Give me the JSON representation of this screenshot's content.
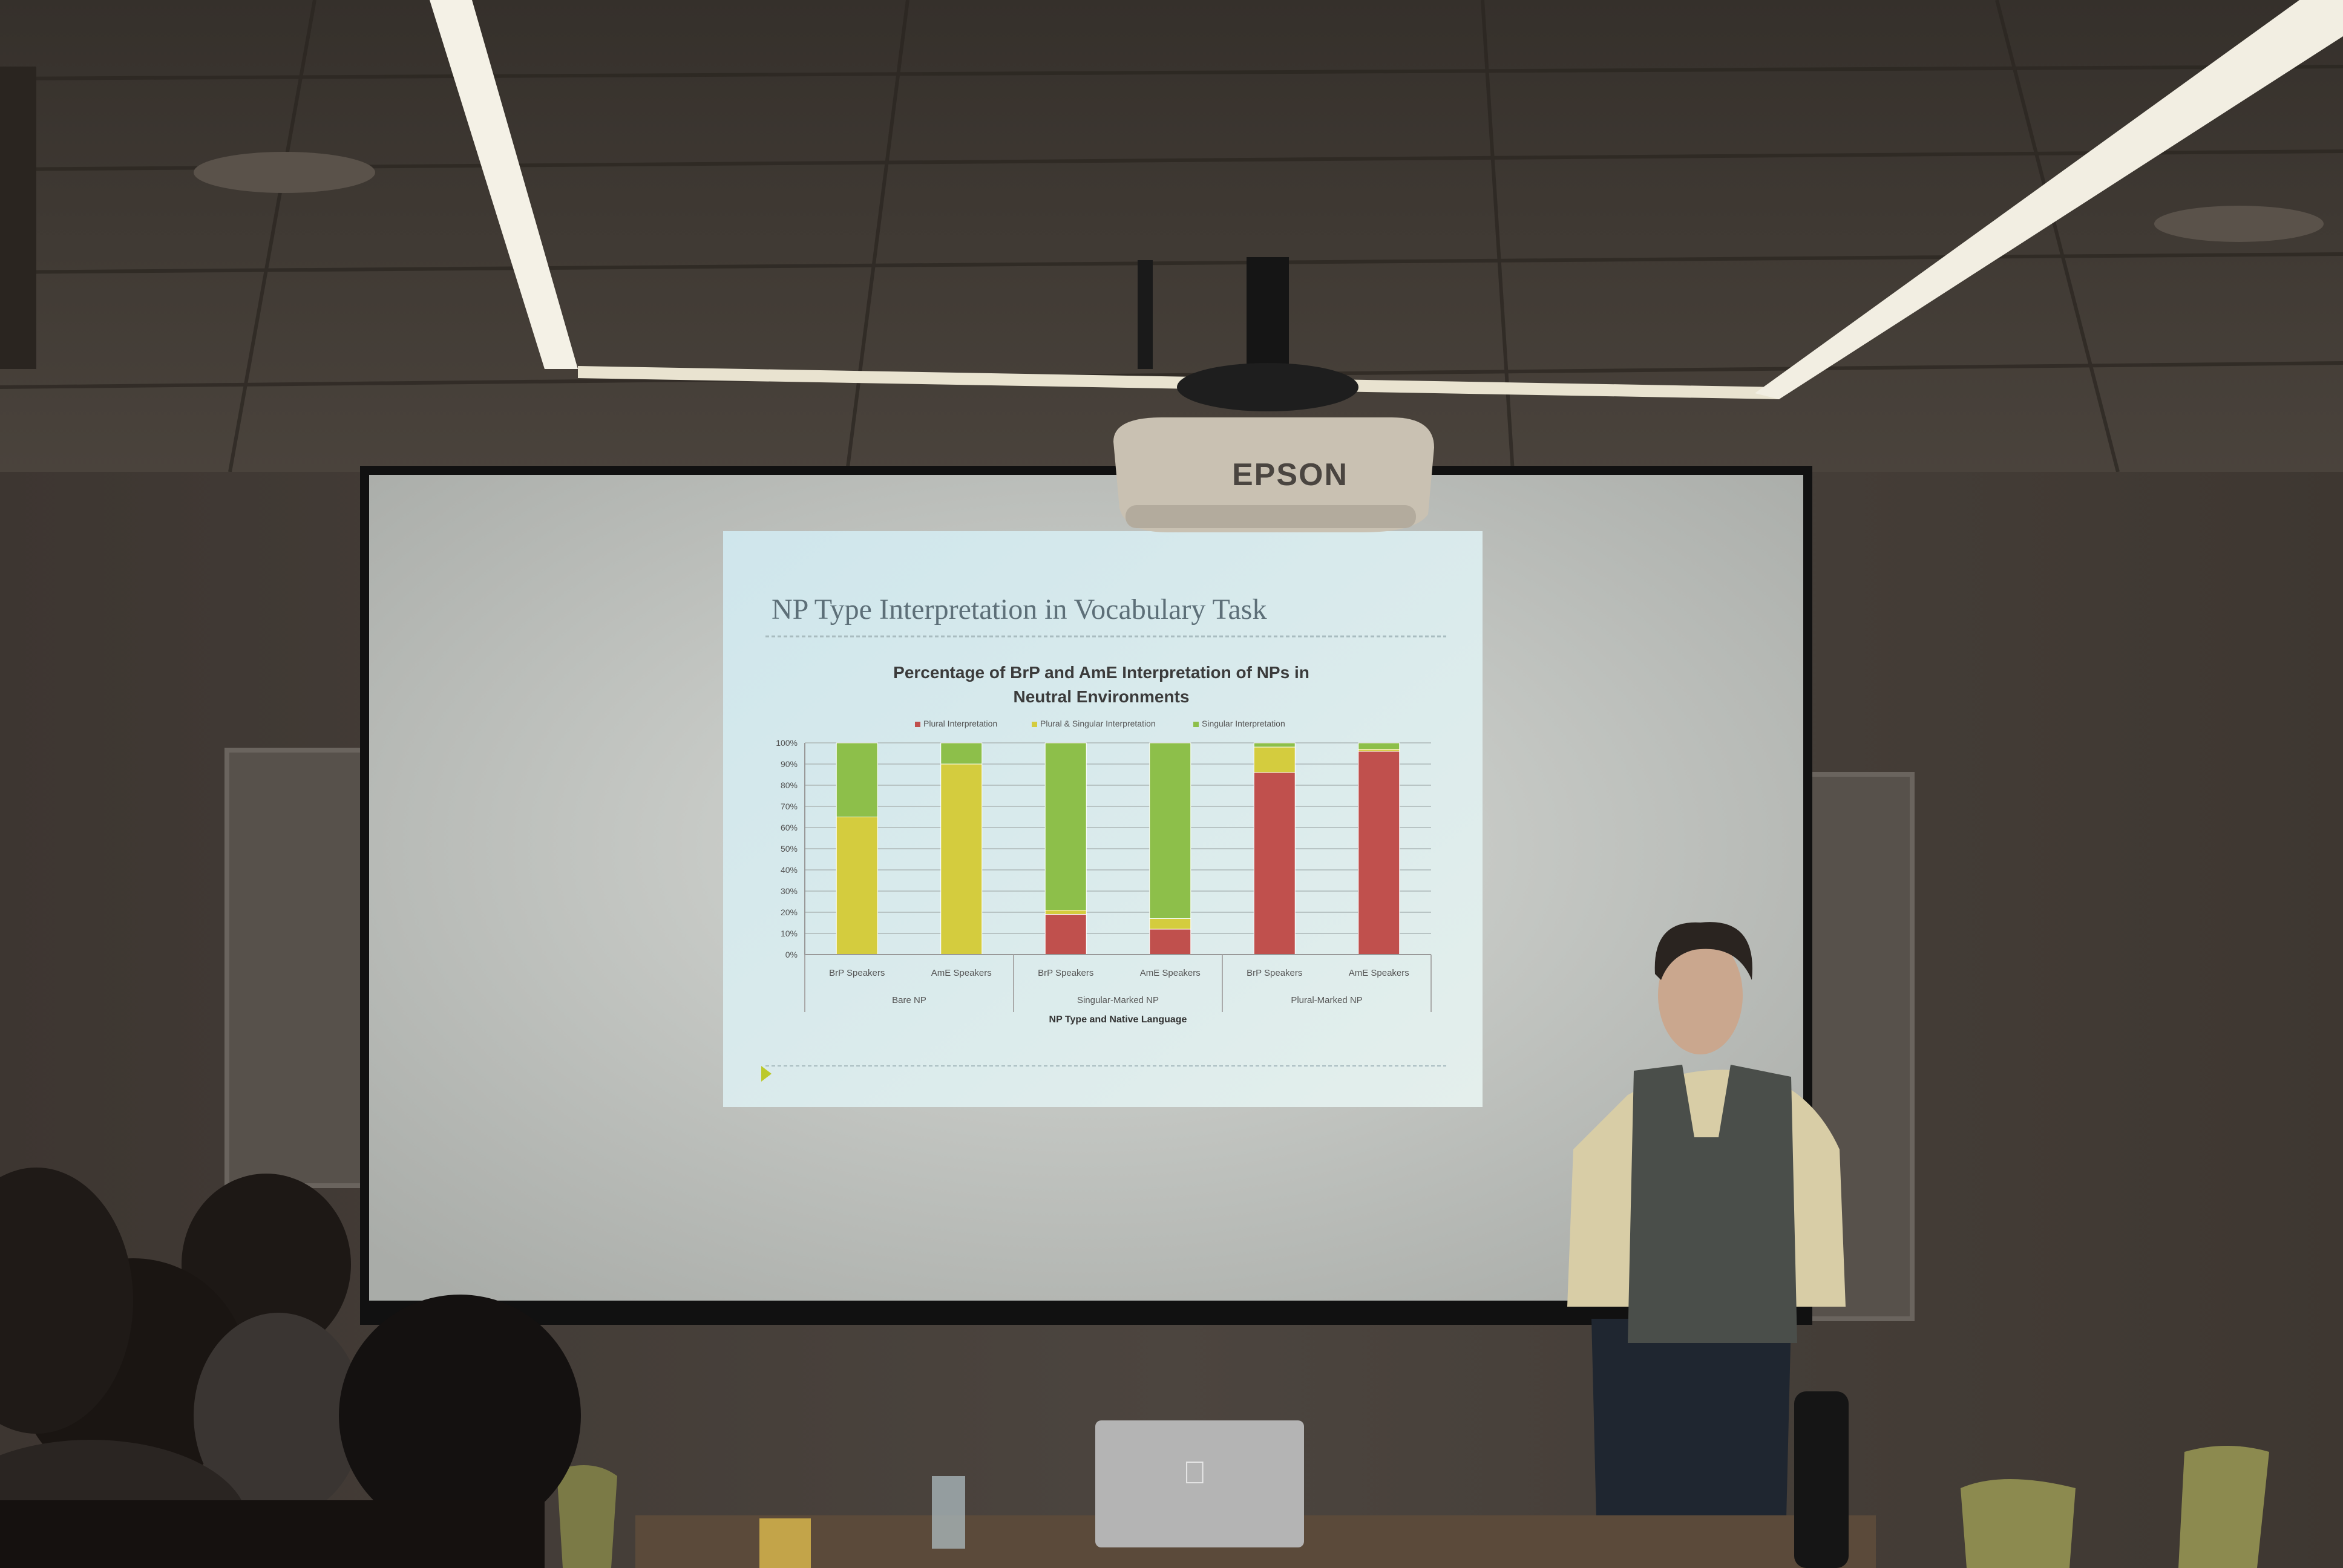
{
  "projector_brand": "EPSON",
  "slide": {
    "title": "NP Type Interpretation in Vocabulary Task"
  },
  "chart_data": {
    "type": "bar",
    "stacked": true,
    "title_lines": [
      "Percentage of BrP and AmE Interpretation of NPs in",
      "Neutral Environments"
    ],
    "legend": [
      "Plural Interpretation",
      "Plural & Singular Interpretation",
      "Singular Interpretation"
    ],
    "legend_placement": "top",
    "categories": [
      "BrP Speakers",
      "AmE Speakers",
      "BrP Speakers",
      "AmE Speakers",
      "BrP Speakers",
      "AmE Speakers"
    ],
    "groups": [
      {
        "name": "Bare NP",
        "span": [
          0,
          1
        ]
      },
      {
        "name": "Singular-Marked NP",
        "span": [
          2,
          3
        ]
      },
      {
        "name": "Plural-Marked NP",
        "span": [
          4,
          5
        ]
      }
    ],
    "series": [
      {
        "name": "Plural Interpretation",
        "color": "#c0504d",
        "values": [
          0,
          0,
          19,
          12,
          86,
          96
        ]
      },
      {
        "name": "Plural & Singular Interpretation",
        "color": "#d4cc3e",
        "values": [
          65,
          90,
          2,
          5,
          12,
          1
        ]
      },
      {
        "name": "Singular Interpretation",
        "color": "#8dbf4a",
        "values": [
          35,
          10,
          79,
          83,
          2,
          3
        ]
      }
    ],
    "yticks": [
      "0%",
      "10%",
      "20%",
      "30%",
      "40%",
      "50%",
      "60%",
      "70%",
      "80%",
      "90%",
      "100%"
    ],
    "ylim": [
      0,
      100
    ],
    "xlabel": "NP Type and Native Language",
    "ylabel": "",
    "grid": true
  },
  "colors": {
    "screen": "#e9ecea",
    "slide_bg": "#dcebee",
    "wall": "#47403a",
    "ceiling": "#3e3731"
  },
  "laptop_logo": "apple-logo"
}
